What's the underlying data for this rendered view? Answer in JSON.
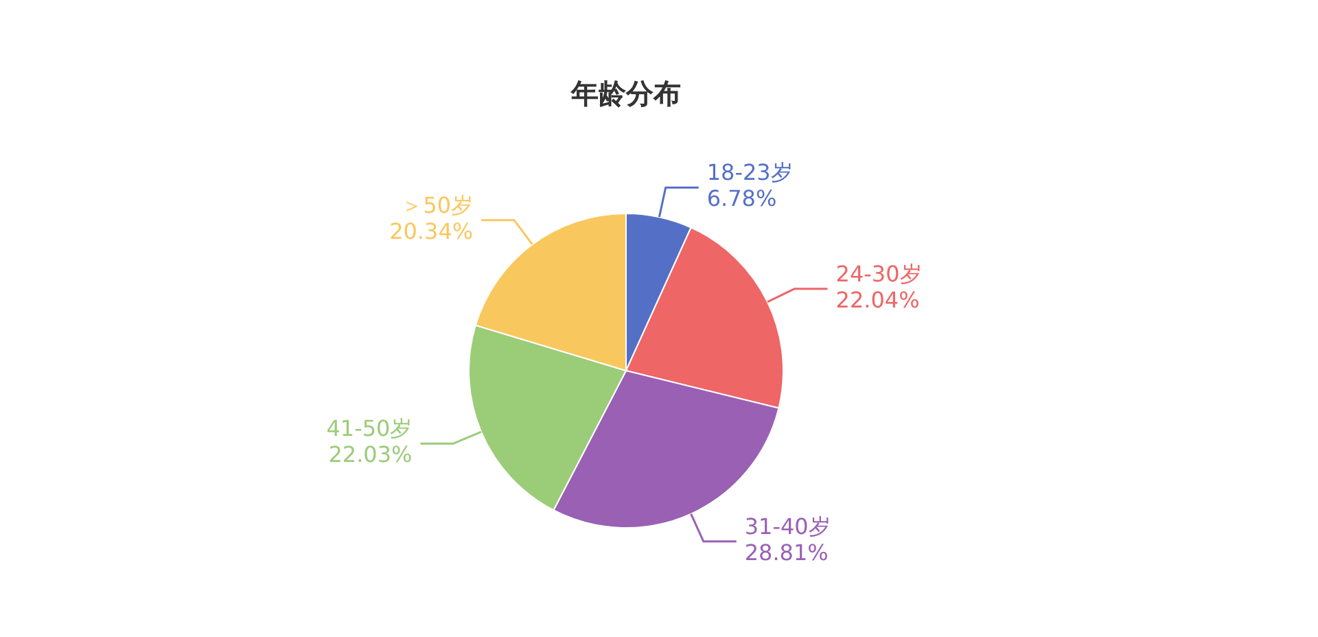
{
  "chart_data": {
    "type": "pie",
    "title": "年龄分布",
    "categories": [
      "18-23岁",
      "24-30岁",
      "31-40岁",
      "41-50岁",
      "＞50岁"
    ],
    "values": [
      6.78,
      22.04,
      28.81,
      22.03,
      20.34
    ],
    "colors": [
      "#5470c6",
      "#ee6666",
      "#9a60b4",
      "#9bcc78",
      "#f8c85e"
    ],
    "value_labels": [
      "6.78%",
      "22.04%",
      "28.81%",
      "22.03%",
      "20.34%"
    ]
  }
}
